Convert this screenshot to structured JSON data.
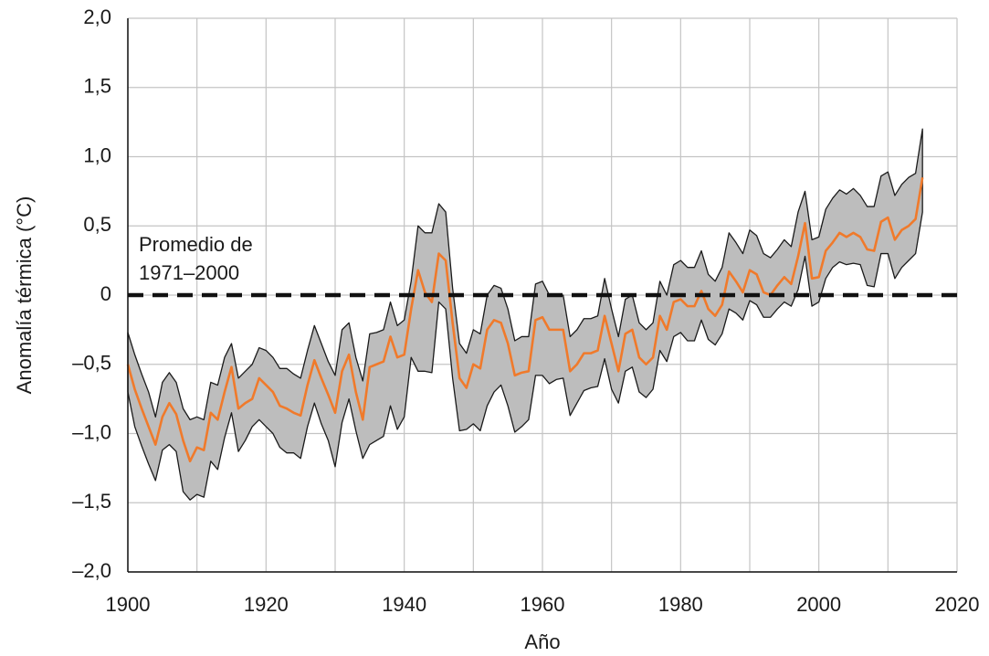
{
  "chart_data": {
    "type": "band-line",
    "xlabel": "Año",
    "ylabel": "Anomalía térmica (°C)",
    "xlim": [
      1900,
      2020
    ],
    "xticks": [
      1900,
      1920,
      1940,
      1960,
      1980,
      2000,
      2020
    ],
    "xminorticks": [
      1910,
      1930,
      1950,
      1970,
      1990,
      2010
    ],
    "ylim": [
      -2.0,
      2.0
    ],
    "yticks": [
      {
        "value": -2.0,
        "label": "–2,0"
      },
      {
        "value": -1.5,
        "label": "–1,5"
      },
      {
        "value": -1.0,
        "label": "–1,0"
      },
      {
        "value": -0.5,
        "label": "–0,5"
      },
      0,
      {
        "value": 0.5,
        "label": "0,5"
      },
      {
        "value": 1.0,
        "label": "1,0"
      },
      {
        "value": 1.5,
        "label": "1,5"
      },
      {
        "value": 2.0,
        "label": "2,0"
      }
    ],
    "grid": true,
    "reference_line": {
      "value": 0,
      "label_lines": [
        "Promedio de",
        "1971–2000"
      ]
    },
    "x": [
      1900,
      1901,
      1902,
      1903,
      1904,
      1905,
      1906,
      1907,
      1908,
      1909,
      1910,
      1911,
      1912,
      1913,
      1914,
      1915,
      1916,
      1917,
      1918,
      1919,
      1920,
      1921,
      1922,
      1923,
      1924,
      1925,
      1926,
      1927,
      1928,
      1929,
      1930,
      1931,
      1932,
      1933,
      1934,
      1935,
      1936,
      1937,
      1938,
      1939,
      1940,
      1941,
      1942,
      1943,
      1944,
      1945,
      1946,
      1947,
      1948,
      1949,
      1950,
      1951,
      1952,
      1953,
      1954,
      1955,
      1956,
      1957,
      1958,
      1959,
      1960,
      1961,
      1962,
      1963,
      1964,
      1965,
      1966,
      1967,
      1968,
      1969,
      1970,
      1971,
      1972,
      1973,
      1974,
      1975,
      1976,
      1977,
      1978,
      1979,
      1980,
      1981,
      1982,
      1983,
      1984,
      1985,
      1986,
      1987,
      1988,
      1989,
      1990,
      1991,
      1992,
      1993,
      1994,
      1995,
      1996,
      1997,
      1998,
      1999,
      2000,
      2001,
      2002,
      2003,
      2004,
      2005,
      2006,
      2007,
      2008,
      2009,
      2010,
      2011,
      2012,
      2013,
      2014,
      2015
    ],
    "series": [
      {
        "type": "band",
        "color": "#bdbdbd",
        "edge_color": "#1a1a1a",
        "upper": [
          -0.27,
          -0.43,
          -0.57,
          -0.7,
          -0.88,
          -0.63,
          -0.56,
          -0.63,
          -0.82,
          -0.9,
          -0.88,
          -0.9,
          -0.63,
          -0.65,
          -0.45,
          -0.35,
          -0.6,
          -0.55,
          -0.5,
          -0.38,
          -0.4,
          -0.45,
          -0.53,
          -0.53,
          -0.57,
          -0.6,
          -0.4,
          -0.22,
          -0.35,
          -0.48,
          -0.58,
          -0.25,
          -0.2,
          -0.45,
          -0.62,
          -0.28,
          -0.27,
          -0.25,
          -0.05,
          -0.22,
          -0.18,
          0.1,
          0.5,
          0.45,
          0.45,
          0.66,
          0.6,
          0.05,
          -0.35,
          -0.42,
          -0.25,
          -0.28,
          0.0,
          0.07,
          0.05,
          -0.1,
          -0.33,
          -0.3,
          -0.3,
          0.08,
          0.1,
          0.0,
          0.0,
          0.0,
          -0.3,
          -0.25,
          -0.17,
          -0.17,
          -0.15,
          0.12,
          -0.1,
          -0.3,
          -0.03,
          0.0,
          -0.2,
          -0.25,
          -0.2,
          0.1,
          0.0,
          0.22,
          0.25,
          0.2,
          0.2,
          0.32,
          0.15,
          0.1,
          0.2,
          0.45,
          0.38,
          0.3,
          0.47,
          0.43,
          0.3,
          0.27,
          0.33,
          0.4,
          0.35,
          0.6,
          0.75,
          0.4,
          0.42,
          0.62,
          0.7,
          0.76,
          0.73,
          0.77,
          0.72,
          0.64,
          0.64,
          0.86,
          0.89,
          0.72,
          0.8,
          0.85,
          0.88,
          1.2
        ],
        "lower": [
          -0.7,
          -0.95,
          -1.09,
          -1.22,
          -1.34,
          -1.12,
          -1.08,
          -1.13,
          -1.42,
          -1.48,
          -1.44,
          -1.46,
          -1.2,
          -1.26,
          -1.03,
          -0.85,
          -1.13,
          -1.05,
          -0.95,
          -0.9,
          -0.95,
          -1.0,
          -1.1,
          -1.14,
          -1.14,
          -1.18,
          -0.95,
          -0.78,
          -0.93,
          -1.05,
          -1.24,
          -0.92,
          -0.75,
          -0.98,
          -1.18,
          -1.08,
          -1.05,
          -1.02,
          -0.8,
          -0.97,
          -0.88,
          -0.45,
          -0.55,
          -0.55,
          -0.56,
          -0.05,
          -0.1,
          -0.6,
          -0.98,
          -0.97,
          -0.93,
          -0.98,
          -0.8,
          -0.7,
          -0.65,
          -0.8,
          -0.99,
          -0.95,
          -0.9,
          -0.58,
          -0.58,
          -0.64,
          -0.61,
          -0.6,
          -0.87,
          -0.78,
          -0.69,
          -0.67,
          -0.66,
          -0.46,
          -0.68,
          -0.78,
          -0.55,
          -0.52,
          -0.7,
          -0.74,
          -0.68,
          -0.4,
          -0.48,
          -0.3,
          -0.27,
          -0.33,
          -0.33,
          -0.18,
          -0.32,
          -0.36,
          -0.28,
          -0.1,
          -0.13,
          -0.18,
          -0.04,
          -0.07,
          -0.16,
          -0.16,
          -0.1,
          -0.05,
          -0.08,
          0.04,
          0.28,
          -0.08,
          -0.05,
          0.12,
          0.2,
          0.24,
          0.22,
          0.23,
          0.22,
          0.07,
          0.06,
          0.3,
          0.3,
          0.12,
          0.2,
          0.25,
          0.3,
          0.6
        ]
      },
      {
        "type": "line",
        "color": "#f07a2b",
        "values": [
          -0.5,
          -0.68,
          -0.82,
          -0.95,
          -1.08,
          -0.88,
          -0.78,
          -0.86,
          -1.05,
          -1.2,
          -1.1,
          -1.12,
          -0.85,
          -0.9,
          -0.7,
          -0.52,
          -0.82,
          -0.78,
          -0.75,
          -0.6,
          -0.65,
          -0.7,
          -0.8,
          -0.82,
          -0.85,
          -0.87,
          -0.65,
          -0.47,
          -0.6,
          -0.72,
          -0.85,
          -0.55,
          -0.43,
          -0.7,
          -0.9,
          -0.52,
          -0.5,
          -0.48,
          -0.3,
          -0.45,
          -0.43,
          -0.1,
          0.18,
          0.02,
          -0.05,
          0.3,
          0.25,
          -0.2,
          -0.6,
          -0.67,
          -0.5,
          -0.53,
          -0.25,
          -0.18,
          -0.2,
          -0.35,
          -0.58,
          -0.56,
          -0.55,
          -0.18,
          -0.16,
          -0.25,
          -0.25,
          -0.25,
          -0.55,
          -0.5,
          -0.42,
          -0.42,
          -0.4,
          -0.15,
          -0.35,
          -0.55,
          -0.28,
          -0.25,
          -0.45,
          -0.5,
          -0.45,
          -0.15,
          -0.25,
          -0.05,
          -0.03,
          -0.08,
          -0.08,
          0.03,
          -0.1,
          -0.15,
          -0.07,
          0.17,
          0.1,
          0.02,
          0.18,
          0.15,
          0.02,
          0.0,
          0.07,
          0.13,
          0.08,
          0.28,
          0.52,
          0.12,
          0.13,
          0.32,
          0.38,
          0.45,
          0.42,
          0.45,
          0.42,
          0.33,
          0.32,
          0.53,
          0.56,
          0.4,
          0.47,
          0.5,
          0.55,
          0.85
        ]
      }
    ]
  }
}
